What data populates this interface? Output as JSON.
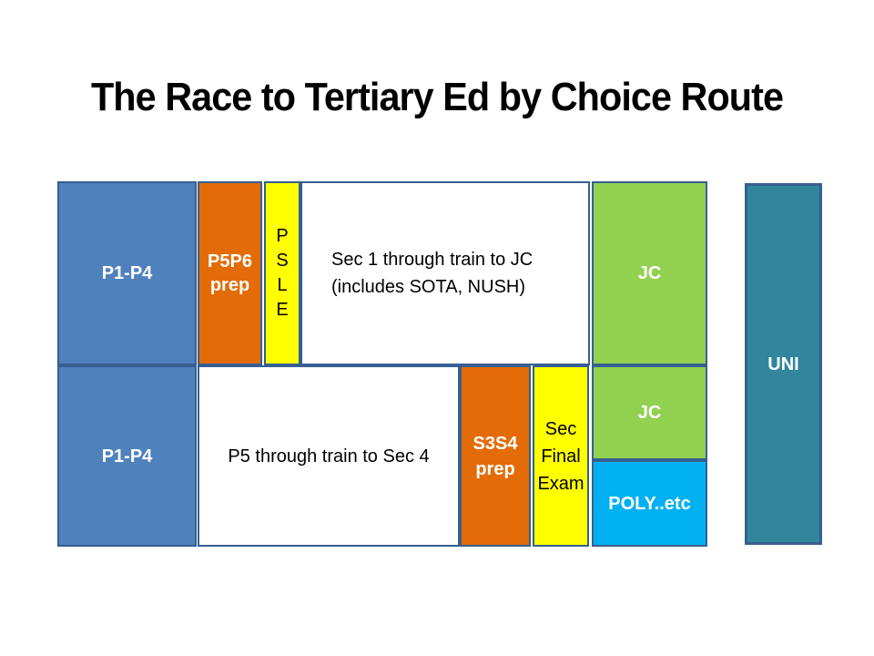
{
  "title": "The Race to Tertiary Ed by Choice Route",
  "colors": {
    "primary_blue": "#4F81BD",
    "orange": "#E36C09",
    "yellow": "#FFFF00",
    "green": "#92D050",
    "cyan": "#00B0F0",
    "teal": "#31859C",
    "border_blue": "#365F91",
    "background": "#FFFFFF",
    "text_light": "#FFFFFF",
    "text_dark": "#000000"
  },
  "route_direct_jc": {
    "p1p4": "P1-P4",
    "p5p6_line1": "P5P6",
    "p5p6_line2": "prep",
    "psle_l1": "P",
    "psle_l2": "S",
    "psle_l3": "L",
    "psle_l4": "E",
    "through_line1": "Sec 1 through train to JC",
    "through_line2": "(includes SOTA, NUSH)",
    "jc": "JC"
  },
  "route_standard": {
    "p1p4": "P1-P4",
    "through": "P5 through train to Sec 4",
    "s3s4_line1": "S3S4",
    "s3s4_line2": "prep",
    "exam_line1": "Sec",
    "exam_line2": "Final",
    "exam_line3": "Exam",
    "jc": "JC",
    "poly": "POLY..etc"
  },
  "tertiary": {
    "uni": "UNI"
  }
}
